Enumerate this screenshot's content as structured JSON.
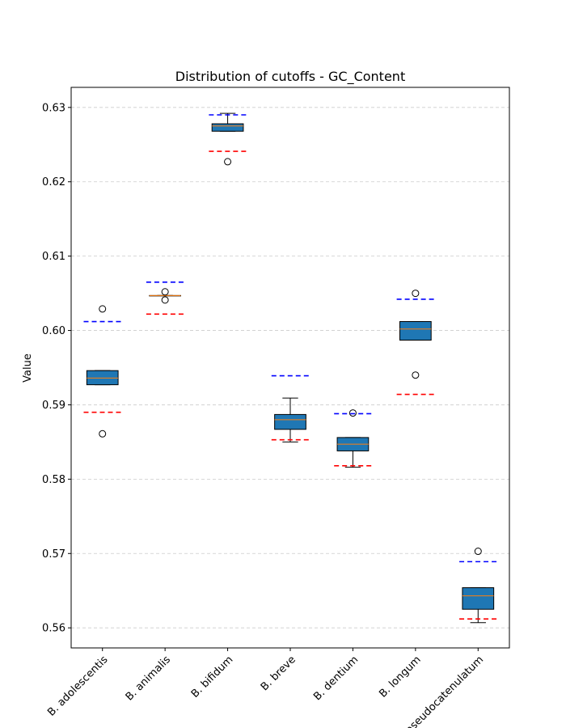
{
  "chart_data": {
    "type": "box",
    "title": "Distribution of cutoffs - GC_Content",
    "xlabel": "",
    "ylabel": "Value",
    "ylim": [
      0.5573,
      0.6327
    ],
    "yticks": [
      0.56,
      0.57,
      0.58,
      0.59,
      0.6,
      0.61,
      0.62,
      0.63
    ],
    "ytick_labels": [
      "0.56",
      "0.57",
      "0.58",
      "0.59",
      "0.60",
      "0.61",
      "0.62",
      "0.63"
    ],
    "grid": "y-dashed",
    "box_color": "#1f77b4",
    "median_color": "#ff7f0e",
    "upper_cutoff_color": "#0000ff",
    "lower_cutoff_color": "#ff0000",
    "categories": [
      "B. adolescentis",
      "B. animalis",
      "B. bifidum",
      "B. breve",
      "B. dentium",
      "B. longum",
      "B. pseudocatenulatum"
    ],
    "boxes": [
      {
        "q1": 0.5927,
        "median": 0.5936,
        "q3": 0.5946,
        "whisker_low": 0.5927,
        "whisker_high": 0.5946,
        "outliers": [
          0.6029,
          0.5861
        ],
        "upper_cutoff": 0.6012,
        "lower_cutoff": 0.589
      },
      {
        "q1": 0.6047,
        "median": 0.6047,
        "q3": 0.6047,
        "whisker_low": 0.6047,
        "whisker_high": 0.6047,
        "outliers": [
          0.6052,
          0.6041
        ],
        "upper_cutoff": 0.6065,
        "lower_cutoff": 0.6022
      },
      {
        "q1": 0.6268,
        "median": 0.6275,
        "q3": 0.6278,
        "whisker_low": 0.6268,
        "whisker_high": 0.6292,
        "outliers": [
          0.6227
        ],
        "upper_cutoff": 0.629,
        "lower_cutoff": 0.6241
      },
      {
        "q1": 0.5867,
        "median": 0.588,
        "q3": 0.5887,
        "whisker_low": 0.585,
        "whisker_high": 0.5909,
        "outliers": [],
        "upper_cutoff": 0.5939,
        "lower_cutoff": 0.5853
      },
      {
        "q1": 0.5838,
        "median": 0.5847,
        "q3": 0.5856,
        "whisker_low": 0.5816,
        "whisker_high": 0.5856,
        "outliers": [
          0.5889
        ],
        "upper_cutoff": 0.5888,
        "lower_cutoff": 0.5818
      },
      {
        "q1": 0.5987,
        "median": 0.6002,
        "q3": 0.6012,
        "whisker_low": 0.5987,
        "whisker_high": 0.6012,
        "outliers": [
          0.605,
          0.594
        ],
        "upper_cutoff": 0.6042,
        "lower_cutoff": 0.5914
      },
      {
        "q1": 0.5625,
        "median": 0.5643,
        "q3": 0.5654,
        "whisker_low": 0.5607,
        "whisker_high": 0.5654,
        "outliers": [
          0.5703
        ],
        "upper_cutoff": 0.5689,
        "lower_cutoff": 0.5612
      }
    ]
  }
}
